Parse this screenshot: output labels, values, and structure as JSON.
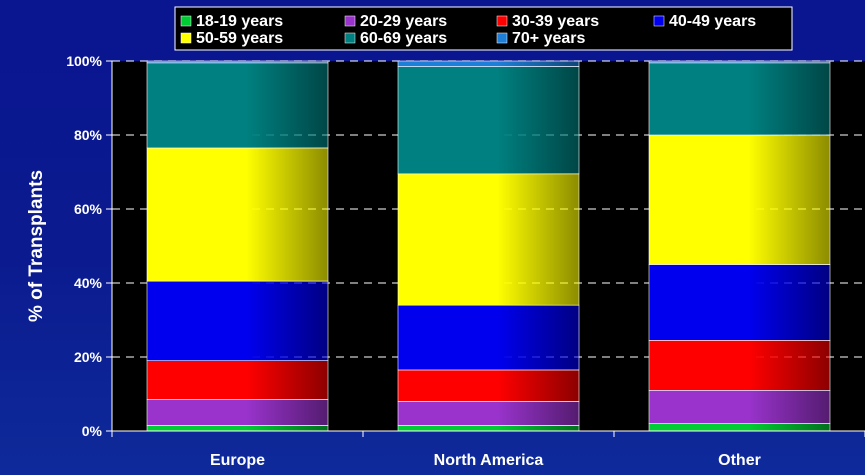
{
  "chart_data": {
    "type": "bar",
    "stacked": true,
    "categories": [
      "Europe",
      "North America",
      "Other"
    ],
    "ylabel": "% of Transplants",
    "xlabel": "",
    "ylim": [
      0,
      100
    ],
    "yticks": [
      "0%",
      "20%",
      "40%",
      "60%",
      "80%",
      "100%"
    ],
    "grid": true,
    "legend_position": "top",
    "series": [
      {
        "name": "18-19 years",
        "color": "#00cc33",
        "values": [
          1.5,
          1.5,
          2
        ]
      },
      {
        "name": "20-29 years",
        "color": "#9933cc",
        "values": [
          7,
          6.5,
          9
        ]
      },
      {
        "name": "30-39 years",
        "color": "#ff0000",
        "values": [
          10.5,
          8.5,
          13.5
        ]
      },
      {
        "name": "40-49 years",
        "color": "#0000ee",
        "values": [
          21.5,
          17.5,
          20.5
        ]
      },
      {
        "name": "50-59 years",
        "color": "#ffff00",
        "values": [
          36,
          35.5,
          35
        ]
      },
      {
        "name": "60-69 years",
        "color": "#008080",
        "values": [
          23,
          29,
          19.5
        ]
      },
      {
        "name": "70+ years",
        "color": "#1e7fd8",
        "values": [
          0.5,
          1.5,
          0.5
        ]
      }
    ]
  }
}
